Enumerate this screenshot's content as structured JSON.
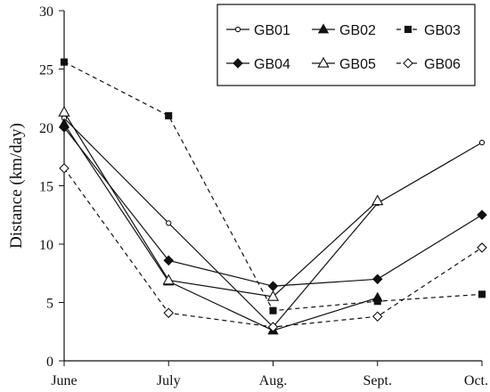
{
  "chart_data": {
    "type": "line",
    "categories": [
      "June",
      "July",
      "Aug.",
      "Sept.",
      "Oct."
    ],
    "ylabel": "Distance (km/day)",
    "xlabel": "",
    "title": "",
    "ylim": [
      0,
      30
    ],
    "yticks": [
      "0",
      "5",
      "10",
      "15",
      "20",
      "25",
      "30"
    ],
    "grid": false,
    "legend_position": "top-right",
    "series": [
      {
        "name": "GB01",
        "marker": "circle-open",
        "dash": "solid",
        "values": [
          20.8,
          11.8,
          2.9,
          13.5,
          18.7
        ]
      },
      {
        "name": "GB02",
        "marker": "triangle-filled",
        "dash": "solid",
        "values": [
          20.3,
          6.8,
          2.6,
          5.4,
          null
        ]
      },
      {
        "name": "GB03",
        "marker": "square-filled",
        "dash": "dashed",
        "values": [
          25.6,
          21.0,
          4.3,
          5.1,
          5.7
        ]
      },
      {
        "name": "GB04",
        "marker": "diamond-filled",
        "dash": "solid",
        "values": [
          20.0,
          8.6,
          6.4,
          7.0,
          12.5
        ]
      },
      {
        "name": "GB05",
        "marker": "triangle-open",
        "dash": "solid",
        "values": [
          21.3,
          6.9,
          5.5,
          13.7,
          null
        ]
      },
      {
        "name": "GB06",
        "marker": "diamond-open",
        "dash": "dashed",
        "values": [
          16.5,
          4.1,
          2.9,
          3.8,
          9.7
        ]
      }
    ]
  }
}
